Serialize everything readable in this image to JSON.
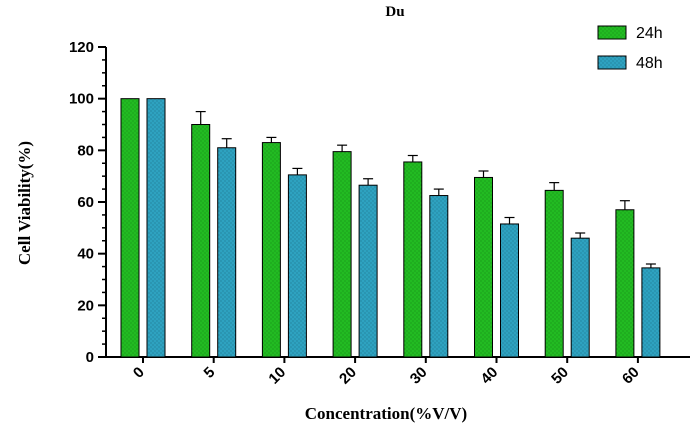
{
  "chart_data": {
    "type": "bar",
    "title": "Du",
    "xlabel": "Concentration(%V/V)",
    "ylabel": "Cell Viability(%)",
    "categories": [
      "0",
      "5",
      "10",
      "20",
      "30",
      "40",
      "50",
      "60"
    ],
    "series": [
      {
        "name": "24h",
        "color": "#22bb22",
        "values": [
          100,
          90,
          83,
          79.5,
          75.5,
          69.5,
          64.5,
          57
        ],
        "errors": [
          0,
          5,
          2,
          2.5,
          2.5,
          2.5,
          3,
          3.5
        ]
      },
      {
        "name": "48h",
        "color": "#2ea2c0",
        "values": [
          100,
          81,
          70.5,
          66.5,
          62.5,
          51.5,
          46,
          34.5
        ],
        "errors": [
          0,
          3.5,
          2.5,
          2.5,
          2.5,
          2.5,
          2,
          1.5
        ]
      }
    ],
    "ylim": [
      0,
      120
    ],
    "yticks": [
      0,
      20,
      40,
      60,
      80,
      100,
      120
    ],
    "grid": false,
    "legend_position": "top-right"
  }
}
